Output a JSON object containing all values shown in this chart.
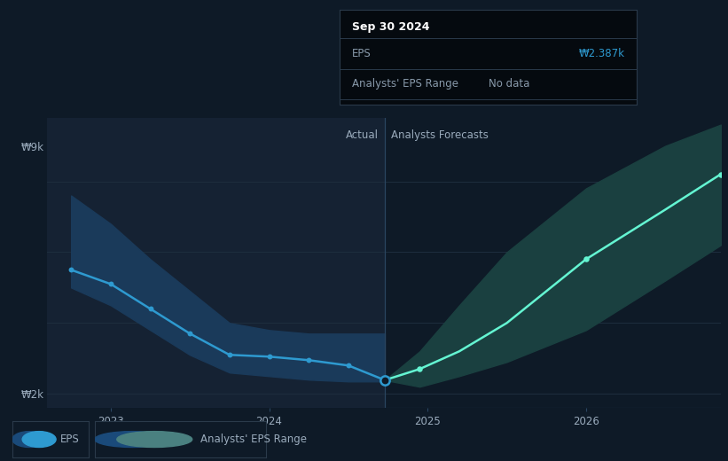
{
  "bg_color": "#0e1a27",
  "actual_bg_color": "#152233",
  "tooltip_bg_color": "#050a0f",
  "title_text": "Sep 30 2024",
  "tooltip_eps_label": "EPS",
  "tooltip_eps_value": "₩2.387k",
  "tooltip_range_label": "Analysts' EPS Range",
  "tooltip_range_value": "No data",
  "ylabel_top": "₩9k",
  "ylabel_bottom": "₩2k",
  "xtick_labels": [
    "2023",
    "2024",
    "2025",
    "2026"
  ],
  "actual_label": "Actual",
  "forecast_label": "Analysts Forecasts",
  "legend_eps": "EPS",
  "legend_range": "Analysts' EPS Range",
  "eps_line_color": "#2e9ad0",
  "forecast_line_color": "#64f5d2",
  "actual_band_color": "#1a3a5a",
  "range_fill_color": "#1a4040",
  "grid_color": "#1e2e3e",
  "text_color": "#9aabbc",
  "divider_color": "#2a4560",
  "xmin": 2022.6,
  "xmax": 2026.85,
  "ymin": 1600,
  "ymax": 9800,
  "divider_x": 2024.73,
  "eps_x": [
    2022.75,
    2023.0,
    2023.25,
    2023.5,
    2023.75,
    2024.0,
    2024.25,
    2024.5,
    2024.73
  ],
  "eps_y": [
    5500,
    5100,
    4400,
    3700,
    3100,
    3050,
    2950,
    2800,
    2387
  ],
  "eps_band_upper": [
    7600,
    6800,
    5800,
    4900,
    4000,
    3800,
    3700,
    3700,
    3700
  ],
  "eps_band_lower": [
    5000,
    4500,
    3800,
    3100,
    2600,
    2500,
    2400,
    2350,
    2350
  ],
  "forecast_x": [
    2024.73,
    2024.95,
    2025.2,
    2025.5,
    2026.0,
    2026.5,
    2026.85
  ],
  "forecast_y": [
    2387,
    2700,
    3200,
    4000,
    5800,
    7200,
    8200
  ],
  "forecast_upper": [
    2387,
    3200,
    4500,
    6000,
    7800,
    9000,
    9600
  ],
  "forecast_lower": [
    2387,
    2200,
    2500,
    2900,
    3800,
    5200,
    6200
  ],
  "ytick_positions": [
    2000,
    9000
  ],
  "xtick_positions": [
    2023.0,
    2024.0,
    2025.0,
    2026.0
  ]
}
